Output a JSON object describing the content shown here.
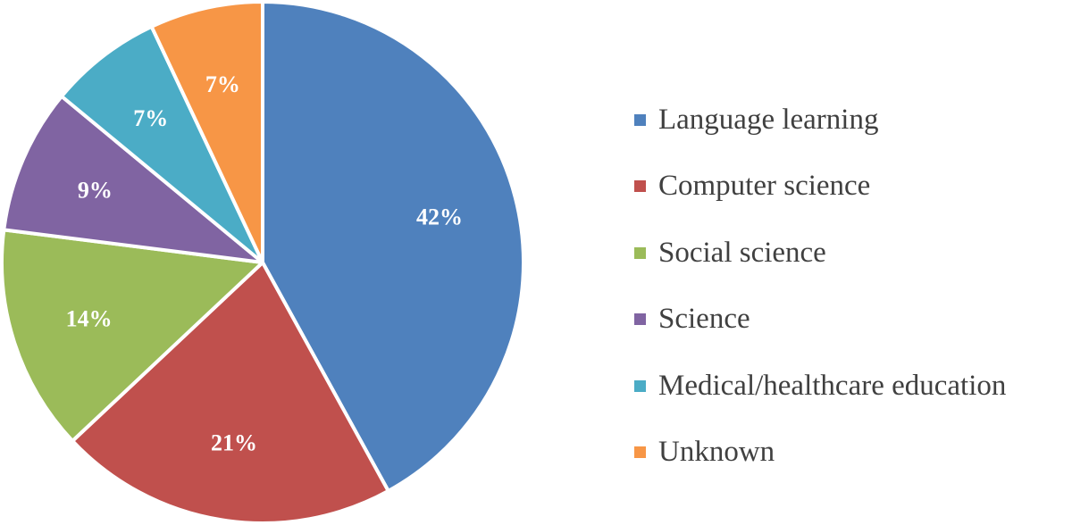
{
  "chart_data": {
    "type": "pie",
    "title": "",
    "start_angle_deg": 0,
    "direction": "clockwise",
    "legend_position": "right",
    "slices": [
      {
        "name": "Language learning",
        "value": 42,
        "label": "42%",
        "color": "#4F81BD"
      },
      {
        "name": "Computer science",
        "value": 21,
        "label": "21%",
        "color": "#C0504D"
      },
      {
        "name": "Social science",
        "value": 14,
        "label": "14%",
        "color": "#9BBB59"
      },
      {
        "name": "Science",
        "value": 9,
        "label": "9%",
        "color": "#8064A2"
      },
      {
        "name": "Medical/healthcare education",
        "value": 7,
        "label": "7%",
        "color": "#4BACC6"
      },
      {
        "name": "Unknown",
        "value": 7,
        "label": "7%",
        "color": "#F79646"
      }
    ]
  }
}
